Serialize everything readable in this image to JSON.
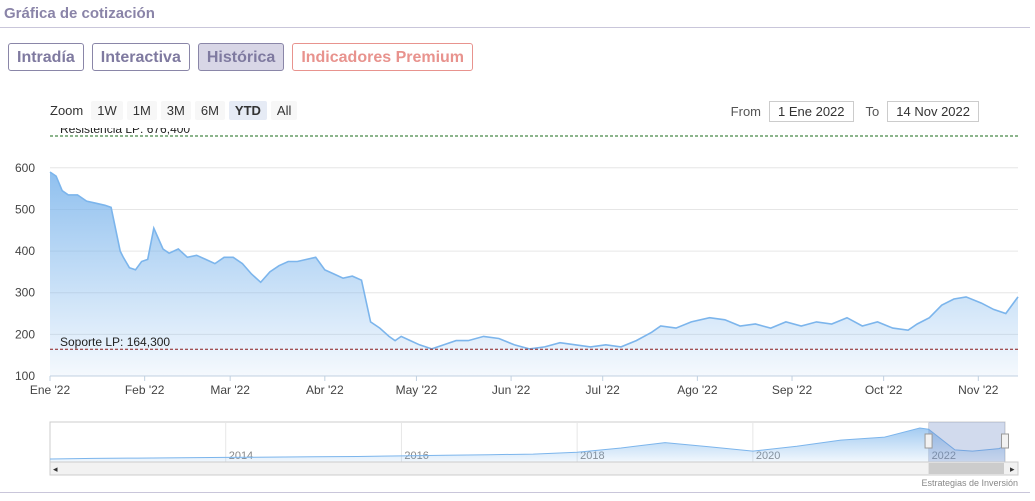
{
  "header": {
    "title": "Gráfica de cotización"
  },
  "tabs": [
    {
      "label": "Intradía",
      "active": false
    },
    {
      "label": "Interactiva",
      "active": false
    },
    {
      "label": "Histórica",
      "active": true
    },
    {
      "label": "Indicadores Premium",
      "active": false
    }
  ],
  "zoom": {
    "label": "Zoom",
    "buttons": [
      "1W",
      "1M",
      "3M",
      "6M",
      "YTD",
      "All"
    ],
    "active": "YTD"
  },
  "range": {
    "from_label": "From",
    "from_value": "1 Ene 2022",
    "to_label": "To",
    "to_value": "14 Nov 2022"
  },
  "colors": {
    "accent": "#7f7aa0",
    "premium": "#e8938e",
    "line": "#7cb5ec",
    "resistance": "#1a6b1a",
    "support": "#8b1a1a"
  },
  "chart_data": {
    "type": "area",
    "x_tick_labels": [
      "Ene '22",
      "Feb '22",
      "Mar '22",
      "Abr '22",
      "May '22",
      "Jun '22",
      "Jul '22",
      "Ago '22",
      "Sep '22",
      "Oct '22",
      "Nov '22"
    ],
    "y_ticks": [
      100,
      200,
      300,
      400,
      500,
      600
    ],
    "ylim": [
      100,
      676.4
    ],
    "xlim": [
      "2022-01-01",
      "2022-11-14"
    ],
    "grid": true,
    "series": [
      {
        "x": [
          "2022-01-01",
          "2022-01-03",
          "2022-01-05",
          "2022-01-07",
          "2022-01-10",
          "2022-01-13",
          "2022-01-16",
          "2022-01-19",
          "2022-01-21",
          "2022-01-24",
          "2022-01-25",
          "2022-01-27",
          "2022-01-29",
          "2022-01-31",
          "2022-02-02",
          "2022-02-04",
          "2022-02-07",
          "2022-02-09",
          "2022-02-12",
          "2022-02-15",
          "2022-02-18",
          "2022-02-21",
          "2022-02-24",
          "2022-02-27",
          "2022-03-02",
          "2022-03-05",
          "2022-03-08",
          "2022-03-11",
          "2022-03-14",
          "2022-03-17",
          "2022-03-20",
          "2022-03-23",
          "2022-03-26",
          "2022-03-29",
          "2022-04-01",
          "2022-04-04",
          "2022-04-07",
          "2022-04-10",
          "2022-04-13",
          "2022-04-16",
          "2022-04-19",
          "2022-04-22",
          "2022-04-24",
          "2022-04-26",
          "2022-04-29",
          "2022-05-02",
          "2022-05-06",
          "2022-05-10",
          "2022-05-14",
          "2022-05-18",
          "2022-05-23",
          "2022-05-28",
          "2022-06-02",
          "2022-06-07",
          "2022-06-12",
          "2022-06-17",
          "2022-06-22",
          "2022-06-27",
          "2022-07-02",
          "2022-07-07",
          "2022-07-12",
          "2022-07-17",
          "2022-07-20",
          "2022-07-25",
          "2022-07-30",
          "2022-08-05",
          "2022-08-10",
          "2022-08-15",
          "2022-08-20",
          "2022-08-25",
          "2022-08-30",
          "2022-09-04",
          "2022-09-09",
          "2022-09-14",
          "2022-09-19",
          "2022-09-24",
          "2022-09-29",
          "2022-10-04",
          "2022-10-09",
          "2022-10-12",
          "2022-10-16",
          "2022-10-20",
          "2022-10-24",
          "2022-10-28",
          "2022-11-02",
          "2022-11-06",
          "2022-11-10",
          "2022-11-14"
        ],
        "y": [
          590,
          580,
          545,
          535,
          535,
          520,
          515,
          510,
          505,
          400,
          385,
          360,
          355,
          375,
          380,
          455,
          405,
          395,
          405,
          385,
          390,
          380,
          370,
          385,
          385,
          370,
          345,
          325,
          350,
          365,
          375,
          375,
          380,
          385,
          355,
          345,
          335,
          340,
          330,
          230,
          215,
          195,
          185,
          195,
          185,
          175,
          165,
          175,
          185,
          185,
          195,
          190,
          175,
          165,
          170,
          180,
          175,
          170,
          175,
          170,
          185,
          205,
          220,
          215,
          230,
          240,
          235,
          220,
          225,
          215,
          230,
          220,
          230,
          225,
          240,
          220,
          230,
          215,
          210,
          225,
          240,
          270,
          285,
          290,
          275,
          260,
          250,
          290
        ]
      }
    ],
    "resistance_label": "Resistencia LP: 676,400",
    "resistance_value": 676.4,
    "support_label": "Soporte LP: 164,300",
    "support_value": 164.3,
    "navigator": {
      "tick_labels": [
        "2014",
        "2016",
        "2018",
        "2020",
        "2022"
      ],
      "x_years": [
        2012.0,
        2012.5,
        2013.0,
        2013.5,
        2014.0,
        2014.5,
        2015.0,
        2015.5,
        2016.0,
        2016.5,
        2017.0,
        2017.5,
        2018.0,
        2018.5,
        2019.0,
        2019.5,
        2020.0,
        2020.5,
        2021.0,
        2021.5,
        2021.9,
        2022.0,
        2022.3,
        2022.5,
        2022.8,
        2022.87
      ],
      "values": [
        50,
        60,
        65,
        70,
        75,
        80,
        85,
        90,
        100,
        110,
        120,
        130,
        160,
        230,
        320,
        250,
        180,
        260,
        360,
        410,
        560,
        540,
        200,
        180,
        220,
        260
      ],
      "range_start_year": 2022.0,
      "range_end_year": 2022.87
    },
    "credit": "Estrategias de Inversión"
  }
}
